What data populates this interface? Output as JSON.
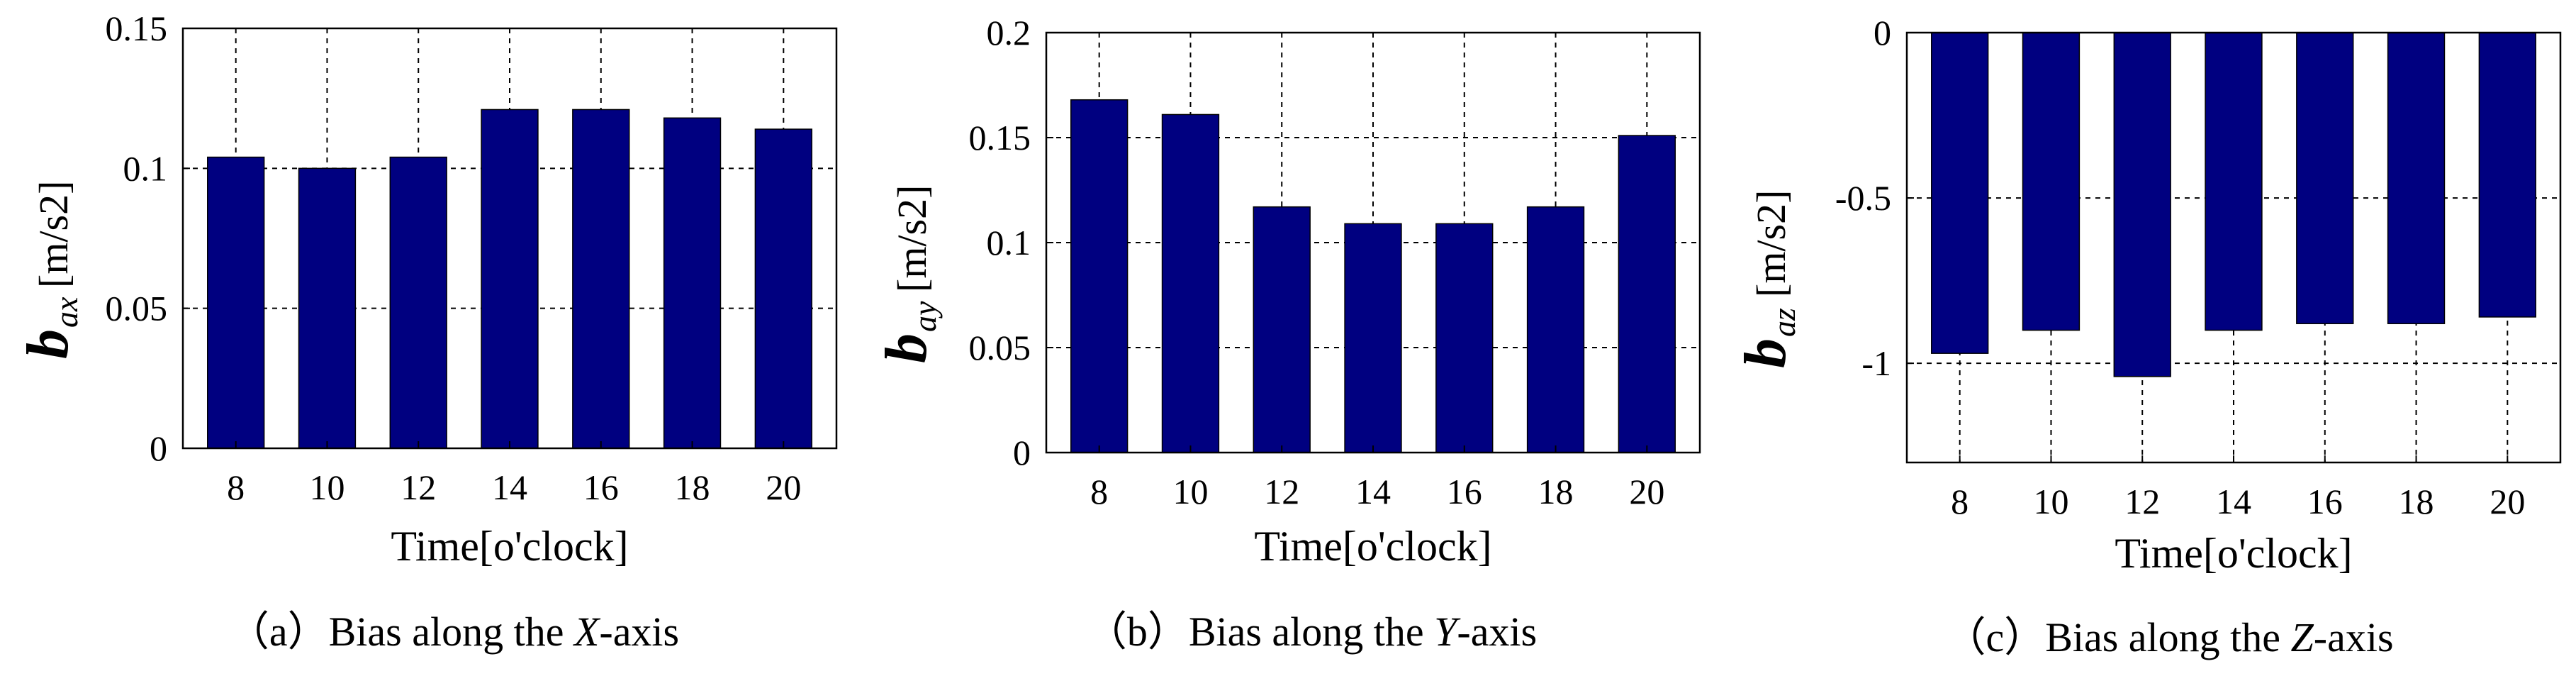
{
  "chart_data": [
    {
      "type": "bar",
      "categories": [
        "8",
        "10",
        "12",
        "14",
        "16",
        "18",
        "20"
      ],
      "values": [
        0.104,
        0.1,
        0.104,
        0.121,
        0.121,
        0.118,
        0.114
      ],
      "ylim": [
        0,
        0.15
      ],
      "yticks": [
        "0",
        "0.05",
        "0.1",
        "0.15"
      ],
      "ytick_values": [
        0,
        0.05,
        0.1,
        0.15
      ],
      "xlabel": "Time[o'clock]",
      "ylabel_symbol": "b",
      "ylabel_sub": "ax",
      "ylabel_unit": "[m/s2]",
      "caption_prefix": "（a）Bias along the ",
      "caption_axis": "X",
      "caption_suffix": "-axis",
      "grid": true,
      "bar_color": "#000080"
    },
    {
      "type": "bar",
      "categories": [
        "8",
        "10",
        "12",
        "14",
        "16",
        "18",
        "20"
      ],
      "values": [
        0.168,
        0.161,
        0.117,
        0.109,
        0.109,
        0.117,
        0.151
      ],
      "ylim": [
        0,
        0.2
      ],
      "yticks": [
        "0",
        "0.05",
        "0.1",
        "0.15",
        "0.2"
      ],
      "ytick_values": [
        0,
        0.05,
        0.1,
        0.15,
        0.2
      ],
      "xlabel": "Time[o'clock]",
      "ylabel_symbol": "b",
      "ylabel_sub": "ay",
      "ylabel_unit": "[m/s2]",
      "caption_prefix": "（b）Bias along the ",
      "caption_axis": "Y",
      "caption_suffix": "-axis",
      "grid": true,
      "bar_color": "#000080"
    },
    {
      "type": "bar",
      "categories": [
        "8",
        "10",
        "12",
        "14",
        "16",
        "18",
        "20"
      ],
      "values": [
        -0.97,
        -0.9,
        -1.04,
        -0.9,
        -0.88,
        -0.88,
        -0.86
      ],
      "ylim": [
        -1.3,
        0
      ],
      "yticks": [
        "0",
        "-0.5",
        "-1"
      ],
      "ytick_values": [
        0,
        -0.5,
        -1
      ],
      "xlabel": "Time[o'clock]",
      "ylabel_symbol": "b",
      "ylabel_sub": "az",
      "ylabel_unit": "[m/s2]",
      "caption_prefix": "（c）Bias along the ",
      "caption_axis": "Z",
      "caption_suffix": "-axis",
      "grid": true,
      "bar_color": "#000080"
    }
  ]
}
